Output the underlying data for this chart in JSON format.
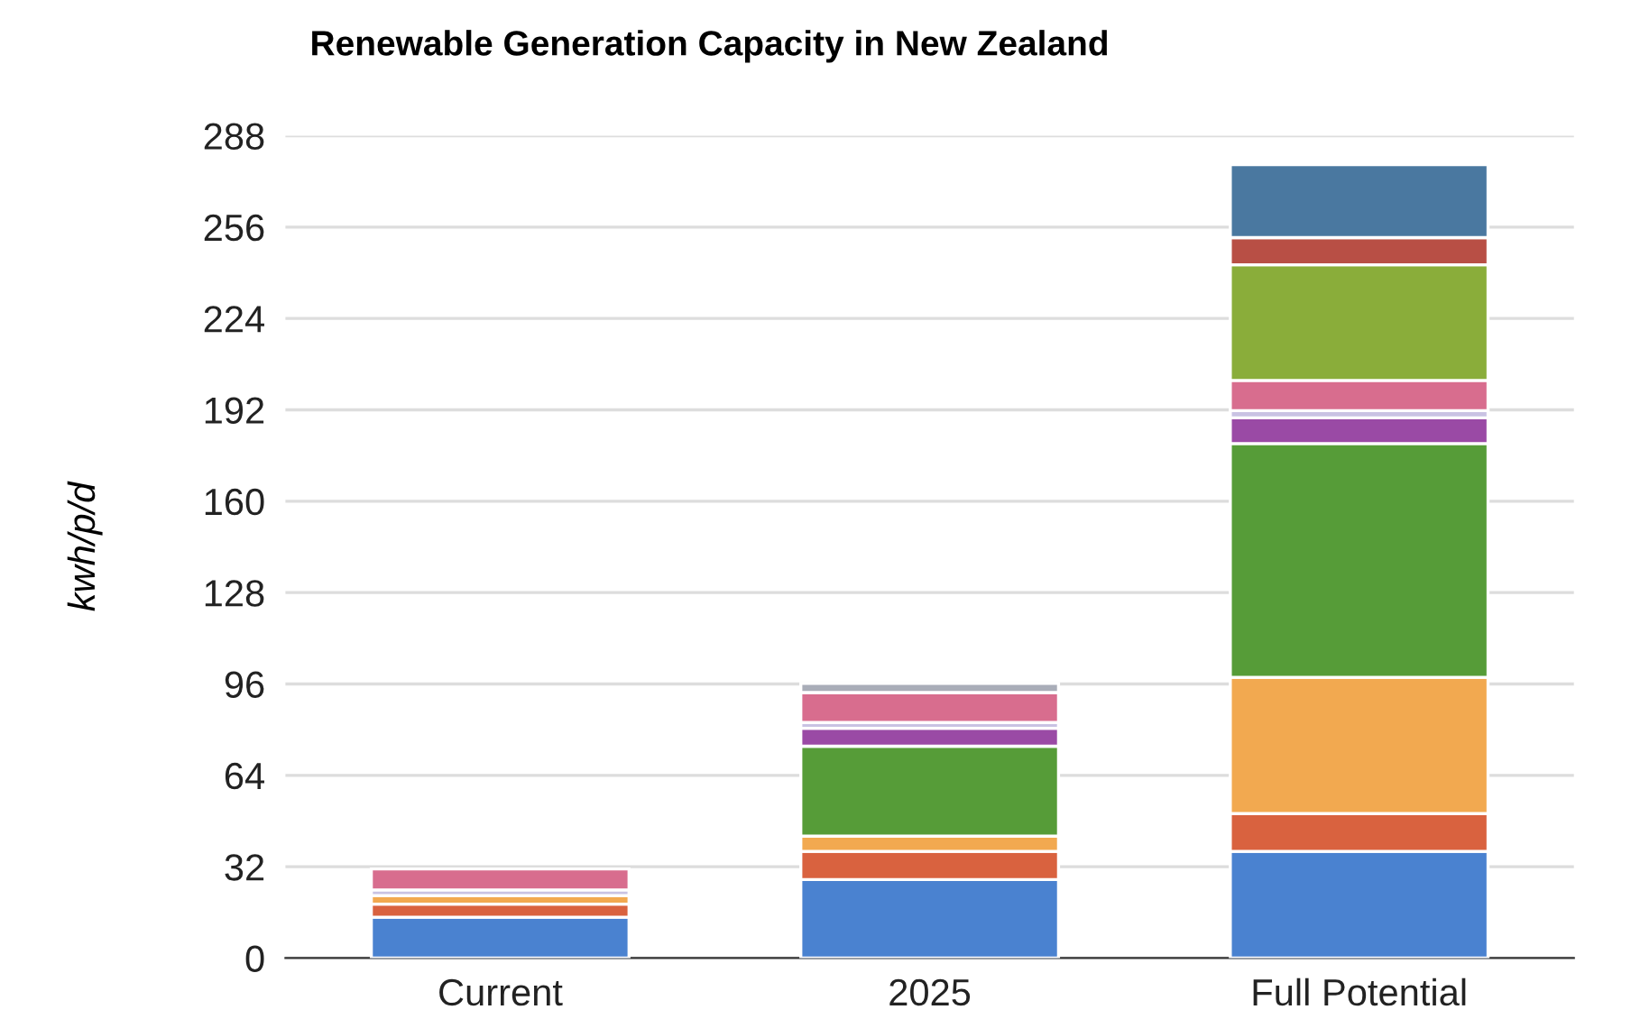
{
  "chart_data": {
    "type": "bar",
    "title": "Renewable Generation Capacity in New Zealand",
    "ylabel": "kwh/p/d",
    "categories": [
      "Current",
      "2025",
      "Full Potential"
    ],
    "stacked": true,
    "series": [
      {
        "color": "#4a82d0",
        "values": [
          14.3,
          27.5,
          37.4
        ]
      },
      {
        "color": "#d9623f",
        "values": [
          4.6,
          9.9,
          13.2
        ]
      },
      {
        "color": "#f2a950",
        "values": [
          3,
          5.3,
          47.7
        ]
      },
      {
        "color": "#569c38",
        "values": [
          null,
          31.5,
          81.9
        ]
      },
      {
        "color": "#9a4aa5",
        "values": [
          null,
          6.3,
          9
        ]
      },
      {
        "color": "#c9c3e3",
        "values": [
          2,
          2,
          2.5
        ]
      },
      {
        "color": "#d86d8e",
        "values": [
          7.3,
          10.5,
          10.6
        ]
      },
      {
        "color": "#8aad3a",
        "values": [
          null,
          null,
          40.5
        ]
      },
      {
        "color": "#b84f45",
        "values": [
          null,
          null,
          9.5
        ]
      },
      {
        "color": "#4a78a0",
        "values": [
          null,
          null,
          25.6
        ]
      },
      {
        "color": "#a9adb8",
        "values": [
          null,
          3.2,
          null
        ]
      }
    ],
    "ylim": [
      0,
      288
    ],
    "yticks": [
      0,
      32,
      64,
      96,
      128,
      160,
      192,
      224,
      256,
      288
    ],
    "grid": "y",
    "legend": false
  }
}
